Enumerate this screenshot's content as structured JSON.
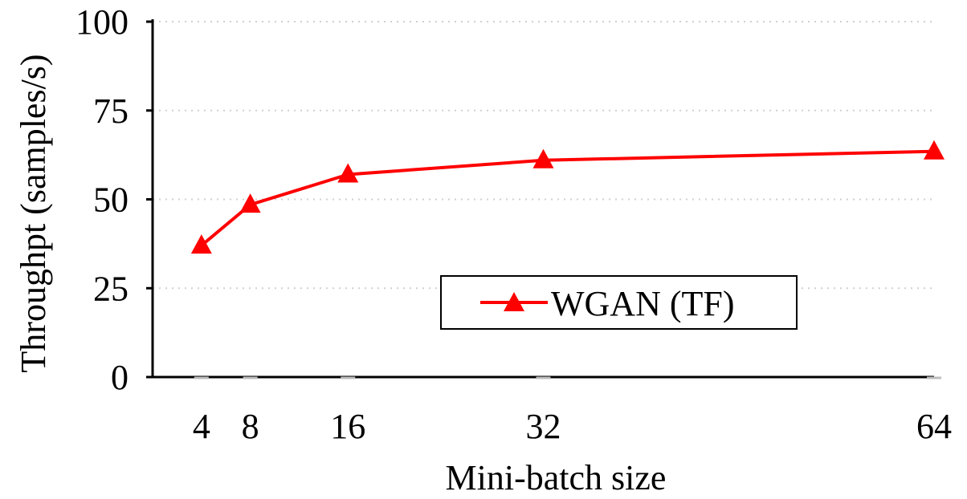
{
  "chart_data": {
    "type": "line",
    "x": [
      4,
      8,
      16,
      32,
      64
    ],
    "x_tick_labels": [
      "4",
      "8",
      "16",
      "32",
      "64"
    ],
    "series": [
      {
        "name": "WGAN (TF)",
        "values": [
          37,
          48.5,
          57,
          61,
          63.5
        ],
        "color": "#ff0000",
        "marker": "triangle"
      }
    ],
    "xlabel": "Mini-batch size",
    "ylabel": "Throughpt (samples/s)",
    "ylim": [
      0,
      100
    ],
    "y_ticks": [
      0,
      25,
      50,
      75,
      100
    ],
    "y_tick_labels": [
      "0",
      "25",
      "50",
      "75",
      "100"
    ],
    "grid": "horizontal dotted",
    "legend_position": "center-right"
  }
}
